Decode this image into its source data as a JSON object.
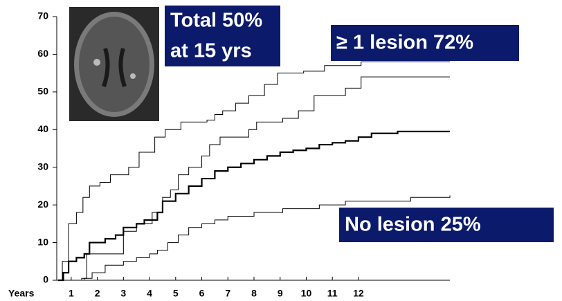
{
  "chart_data": {
    "type": "line",
    "drawstyle": "steps-post",
    "xlabel": "Years",
    "xlim": [
      0,
      15
    ],
    "xticks": [
      {
        "value": 0.5,
        "label": "1"
      },
      {
        "value": 1.5,
        "label": "2"
      },
      {
        "value": 2.5,
        "label": "3"
      },
      {
        "value": 3.5,
        "label": "4"
      },
      {
        "value": 4.5,
        "label": "5"
      },
      {
        "value": 5.5,
        "label": "6"
      },
      {
        "value": 6.5,
        "label": "7"
      },
      {
        "value": 7.5,
        "label": "8"
      },
      {
        "value": 8.5,
        "label": "9"
      },
      {
        "value": 9.5,
        "label": "10"
      },
      {
        "value": 10.5,
        "label": "11"
      },
      {
        "value": 11.5,
        "label": "12"
      }
    ],
    "ylim": [
      0,
      70
    ],
    "yticks": [
      0,
      10,
      20,
      30,
      40,
      50,
      60,
      70
    ],
    "grid": false,
    "series": [
      {
        "color": "#000000",
        "linewidth": 1,
        "x": [
          0,
          0.16,
          0.4,
          0.7,
          0.95,
          1.2,
          1.6,
          2.0,
          2.7,
          3.1,
          3.7,
          4.1,
          4.7,
          5.7,
          6.0,
          6.3,
          6.8,
          7.3,
          7.9,
          8.4,
          9.4,
          10.2,
          11.6,
          15
        ],
        "values": [
          0,
          5,
          15,
          18,
          22,
          25,
          26,
          28,
          30,
          34,
          38,
          40,
          42,
          42.5,
          44,
          45,
          47,
          49,
          52,
          55,
          55.5,
          57,
          58,
          58
        ]
      },
      {
        "color": "#000000",
        "linewidth": 1,
        "x": [
          0,
          0.9,
          1.1,
          2.4,
          2.5,
          3.0,
          3.6,
          4.0,
          4.3,
          4.6,
          5.0,
          5.5,
          5.8,
          6.2,
          7.3,
          7.6,
          8.6,
          9.2,
          9.8,
          11.0,
          11.6,
          15
        ],
        "values": [
          0,
          0.5,
          7,
          7,
          13,
          15,
          18,
          22,
          24,
          28,
          30,
          33,
          36,
          38,
          40,
          42,
          43,
          45,
          49,
          51,
          54,
          54
        ]
      },
      {
        "color": "#000000",
        "linewidth": 2.2,
        "x": [
          0,
          0.2,
          0.4,
          0.7,
          1.0,
          1.2,
          1.8,
          2.2,
          2.5,
          3.0,
          3.3,
          3.8,
          4.0,
          4.5,
          5.0,
          5.5,
          6.0,
          6.5,
          7.0,
          7.5,
          8.0,
          8.5,
          9.0,
          9.5,
          10.0,
          10.5,
          11.0,
          11.5,
          12.0,
          13,
          15
        ],
        "values": [
          0,
          2,
          5,
          6,
          7,
          10,
          11,
          12,
          14,
          15,
          16,
          18,
          21,
          23,
          25,
          27,
          29,
          30,
          31,
          32,
          33,
          34,
          34.5,
          35,
          36,
          36.5,
          37,
          38,
          39,
          39.5,
          39.5
        ]
      },
      {
        "color": "#000000",
        "linewidth": 1,
        "x": [
          0,
          1.0,
          1.3,
          1.8,
          2.5,
          3.0,
          3.5,
          3.8,
          4.2,
          4.6,
          5.0,
          5.5,
          6.0,
          6.5,
          7.5,
          8.6,
          10,
          11,
          13.5,
          15
        ],
        "values": [
          0,
          0.5,
          2,
          4,
          5,
          6,
          7,
          8,
          10,
          12,
          14,
          15,
          16,
          17,
          18,
          19,
          20,
          21,
          22,
          22.5
        ]
      }
    ],
    "annotations": [
      {
        "lines": [
          "Total 50%",
          "at 15 yrs"
        ]
      },
      {
        "lines": [
          "≥ 1 lesion 72%"
        ]
      },
      {
        "lines": [
          "No lesion 25%"
        ]
      }
    ],
    "annotation_color": "#0b1a6b"
  }
}
